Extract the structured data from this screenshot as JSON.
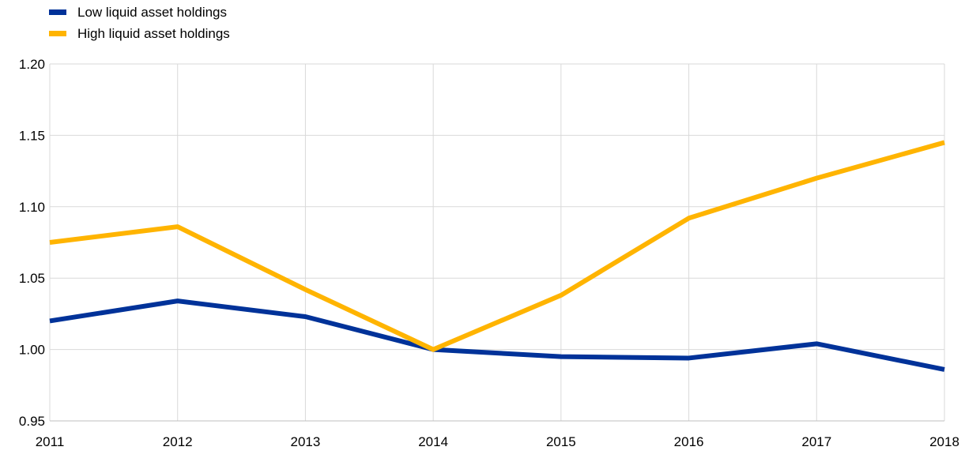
{
  "chart_data": {
    "type": "line",
    "title": "",
    "xlabel": "",
    "ylabel": "",
    "x": [
      "2011",
      "2012",
      "2013",
      "2014",
      "2015",
      "2016",
      "2017",
      "2018"
    ],
    "ylim": [
      0.95,
      1.2
    ],
    "yticks": [
      "0.95",
      "1.00",
      "1.05",
      "1.10",
      "1.15",
      "1.20"
    ],
    "grid": true,
    "legend_position": "top-left",
    "series": [
      {
        "name": "Low liquid asset holdings",
        "color": "#003299",
        "values": [
          1.02,
          1.034,
          1.023,
          1.0,
          0.995,
          0.994,
          1.004,
          0.986
        ]
      },
      {
        "name": "High liquid asset holdings",
        "color": "#FFB400",
        "values": [
          1.075,
          1.086,
          1.042,
          1.0,
          1.038,
          1.092,
          1.12,
          1.145
        ]
      }
    ]
  }
}
